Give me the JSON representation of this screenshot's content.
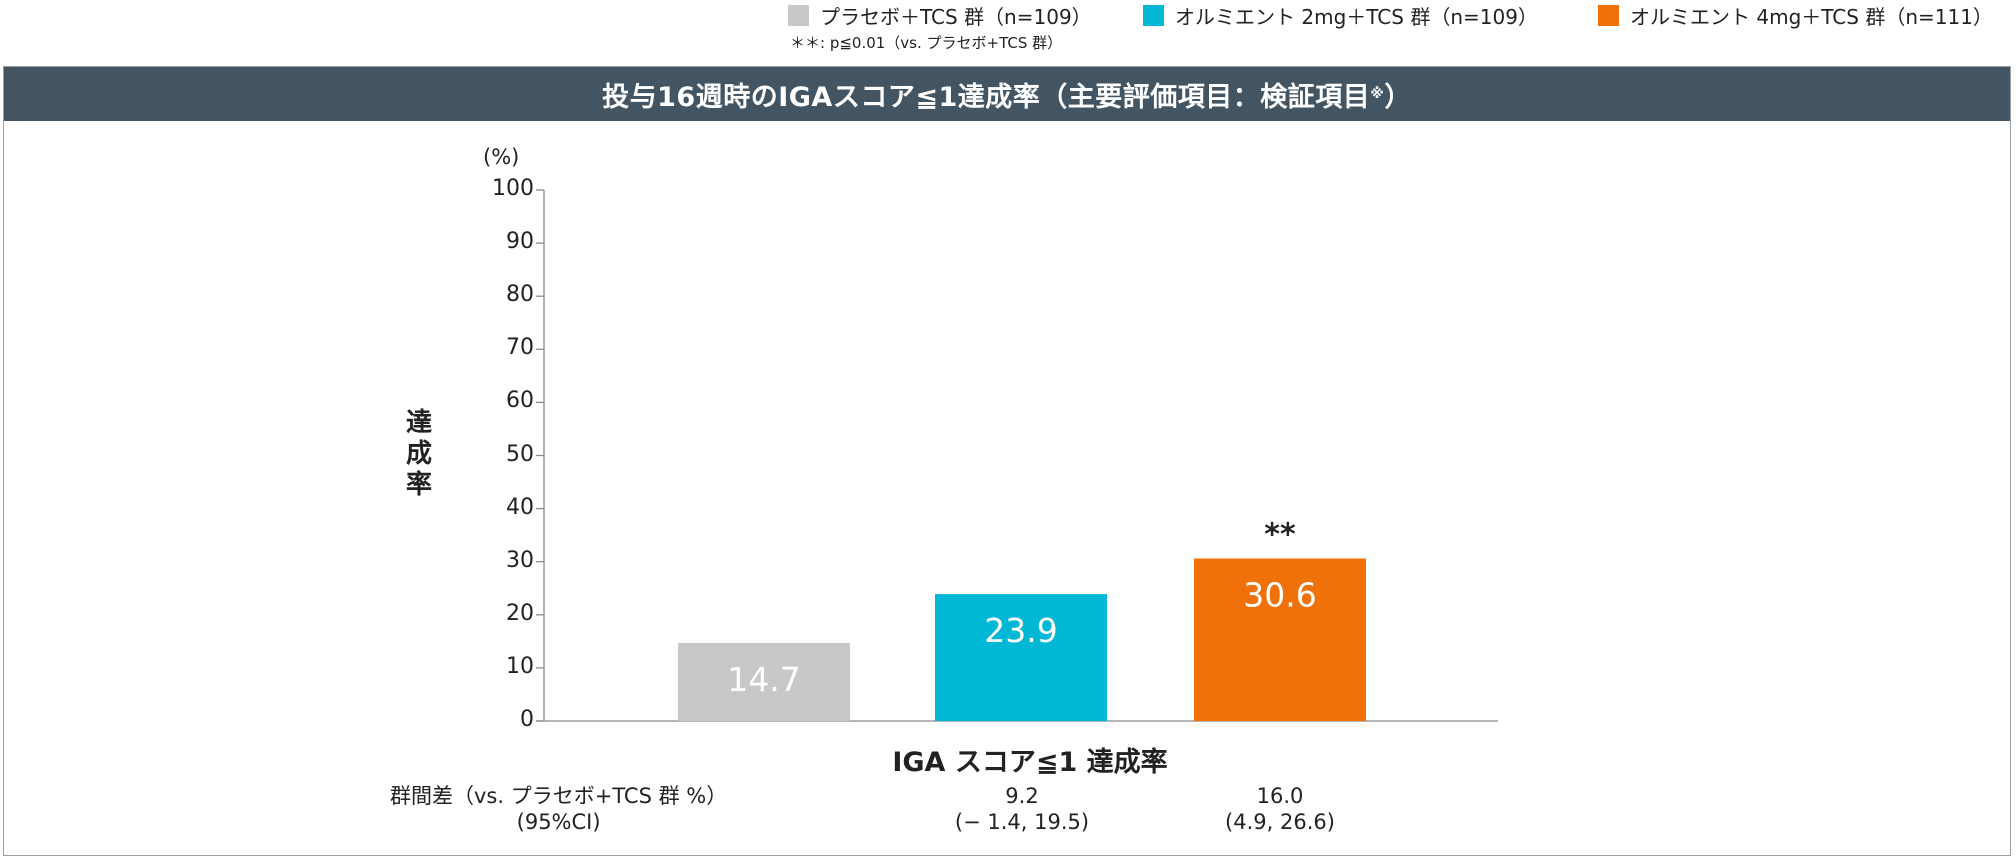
{
  "legend": [
    {
      "label": "プラセボ＋TCS 群（n=109）",
      "color": "#c7c8ca"
    },
    {
      "label": "オルミエント 2mg＋TCS 群（n=109）",
      "color": "#00b7d6"
    },
    {
      "label": "オルミエント 4mg＋TCS 群（n=111）",
      "color": "#f0700a"
    }
  ],
  "footnote": "＊＊: p≦0.01（vs. プラセボ+TCS 群）",
  "header": {
    "title": "投与16週時のIGAスコア≦1達成率（主要評価項目：検証項目",
    "title_mark": "※",
    "title_close": "）"
  },
  "y_axis": {
    "title_chars": [
      "達",
      "成",
      "率"
    ],
    "unit": "(%)"
  },
  "chart_data": {
    "type": "bar",
    "title": "投与16週時のIGAスコア≦1達成率（主要評価項目：検証項目※）",
    "xlabel": "IGA スコア≦1 達成率",
    "ylabel": "達成率 (%)",
    "ylim": [
      0,
      100
    ],
    "yticks": [
      0,
      10,
      20,
      30,
      40,
      50,
      60,
      70,
      80,
      90,
      100
    ],
    "categories": [
      "プラセボ＋TCS 群",
      "オルミエント 2mg＋TCS 群",
      "オルミエント 4mg＋TCS 群"
    ],
    "values": [
      14.7,
      23.9,
      30.6
    ],
    "value_labels": [
      "14.7",
      "23.9",
      "30.6"
    ],
    "colors": [
      "#c7c8ca",
      "#00b7d6",
      "#f0700a"
    ],
    "annotations": [
      "",
      "",
      "**"
    ]
  },
  "group_diff": {
    "label_line1": "群間差（vs. プラセボ+TCS 群 %）",
    "label_line2": "(95%CI)",
    "columns": [
      {
        "value": "9.2",
        "ci": "(− 1.4, 19.5)"
      },
      {
        "value": "16.0",
        "ci": "(4.9, 26.6)"
      }
    ]
  }
}
